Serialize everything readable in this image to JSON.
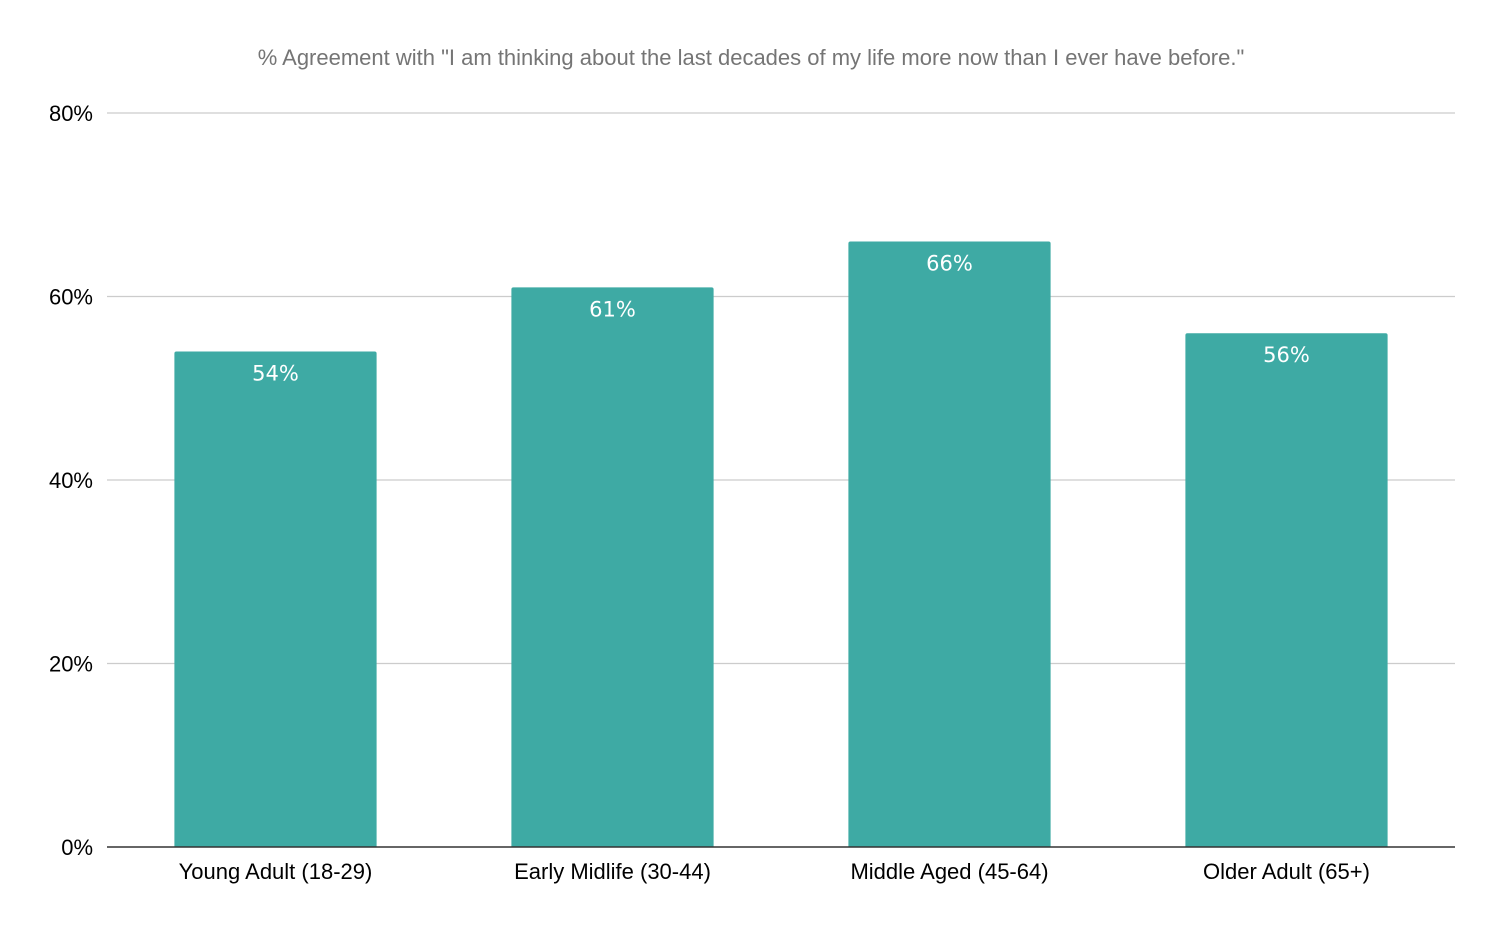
{
  "chart_data": {
    "type": "bar",
    "title": "% Agreement with \"I am thinking about the last decades of my life more now than I ever have before.\"",
    "categories": [
      "Young Adult (18-29)",
      "Early Midlife (30-44)",
      "Middle Aged (45-64)",
      "Older Adult (65+)"
    ],
    "values": [
      54,
      61,
      66,
      56
    ],
    "data_labels": [
      "54%",
      "61%",
      "66%",
      "56%"
    ],
    "ylim": [
      0,
      80
    ],
    "yticks": [
      0,
      20,
      40,
      60,
      80
    ],
    "ytick_labels": [
      "0%",
      "20%",
      "40%",
      "60%",
      "80%"
    ],
    "grid": true,
    "legend": "none",
    "colors": {
      "bar": "#3eaaa4",
      "grid": "#cccccc",
      "axis": "#333333"
    }
  }
}
